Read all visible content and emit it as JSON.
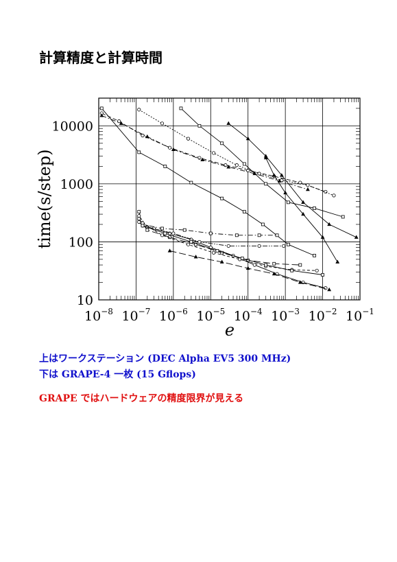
{
  "title": "計算精度と計算時間",
  "captions": {
    "line1": "上はワークステーション (DEC Alpha EV5 300 MHz)",
    "line2": "下は GRAPE-4 一枚 (15 Gflops)",
    "line3": "GRAPE ではハードウェアの精度限界が見える"
  },
  "colors": {
    "caption_blue": "#1010cc",
    "caption_red": "#e01010"
  },
  "chart_data": {
    "type": "line",
    "xlabel": "e",
    "ylabel": "time(s/step)",
    "x_scale": "log",
    "y_scale": "log",
    "xlim": [
      1e-08,
      0.1
    ],
    "ylim": [
      10,
      30000
    ],
    "grid": true,
    "x_tick_exponents": [
      "-8",
      "-7",
      "-6",
      "-5",
      "-4",
      "-3",
      "-2",
      "-1"
    ],
    "y_tick_labels": [
      "10",
      "100",
      "1000",
      "10000"
    ],
    "series": [
      {
        "marker": "square",
        "dash": "solid",
        "x": [
          1.2e-08,
          1.2e-07,
          6e-07,
          3e-06,
          2e-05,
          8e-05,
          0.00025,
          0.0012,
          0.006
        ],
        "y": [
          20000,
          3500,
          2000,
          1050,
          560,
          330,
          200,
          90,
          58
        ]
      },
      {
        "marker": "circle",
        "dash": "dash",
        "x": [
          1.2e-08,
          3.5e-08,
          1.5e-07,
          8e-07,
          5e-06,
          2.5e-05,
          0.0001,
          0.0005,
          0.0025,
          0.012
        ],
        "y": [
          16500,
          12000,
          6800,
          4200,
          2800,
          2100,
          1700,
          1350,
          1050,
          730
        ]
      },
      {
        "marker": "triangle",
        "dash": "dashdot",
        "x": [
          1.2e-08,
          4e-08,
          2e-07,
          1e-06,
          6e-06,
          3e-05,
          0.00015,
          0.0007,
          0.004
        ],
        "y": [
          15000,
          11000,
          6500,
          3900,
          2600,
          1950,
          1500,
          1120,
          800
        ]
      },
      {
        "marker": "circle",
        "dash": "dot",
        "x": [
          1.2e-07,
          5e-07,
          2.5e-06,
          1.2e-05,
          5e-05,
          0.0002,
          0.0008,
          0.004,
          0.02
        ],
        "y": [
          19000,
          11000,
          6000,
          3400,
          2100,
          1500,
          1150,
          950,
          630
        ]
      },
      {
        "marker": "square",
        "dash": "solid",
        "x": [
          1.6e-06,
          5e-06,
          2e-05,
          8e-05,
          0.0003,
          0.0012,
          0.006,
          0.035
        ],
        "y": [
          20000,
          10000,
          5000,
          2200,
          1000,
          480,
          380,
          270
        ]
      },
      {
        "marker": "triangle",
        "dash": "solid",
        "x": [
          3e-05,
          0.0001,
          0.0003,
          0.0008,
          0.003,
          0.015,
          0.08
        ],
        "y": [
          11000,
          6000,
          3000,
          1400,
          480,
          200,
          120
        ]
      },
      {
        "marker": "triangle",
        "dash": "solid",
        "x": [
          0.0003,
          0.0005,
          0.001,
          0.003,
          0.01,
          0.025
        ],
        "y": [
          2800,
          1400,
          700,
          300,
          120,
          45
        ]
      },
      {
        "marker": "circle",
        "dash": "solid",
        "x": [
          1.2e-07,
          1.5e-07,
          3e-07,
          8e-07,
          3e-06,
          1e-05,
          4e-05,
          0.00015,
          0.0006,
          0.003,
          0.012
        ],
        "y": [
          220,
          190,
          170,
          140,
          110,
          80,
          58,
          40,
          28,
          20,
          16
        ]
      },
      {
        "marker": "square",
        "dash": "dashdot",
        "x": [
          1.2e-07,
          1.5e-07,
          5e-07,
          2e-06,
          1e-05,
          5e-05,
          0.0002,
          0.0006
        ],
        "y": [
          330,
          200,
          170,
          160,
          140,
          130,
          130,
          130
        ]
      },
      {
        "marker": "circle",
        "dash": "dashdotdot",
        "x": [
          1.2e-07,
          2e-07,
          1e-06,
          5e-06,
          3e-05,
          0.0002,
          0.0009
        ],
        "y": [
          280,
          180,
          140,
          100,
          85,
          85,
          85
        ]
      },
      {
        "marker": "square",
        "dash": "longdash",
        "x": [
          1.2e-07,
          2e-07,
          8e-07,
          4e-06,
          2e-05,
          0.0001,
          0.0005,
          0.0025
        ],
        "y": [
          250,
          160,
          120,
          90,
          65,
          48,
          42,
          40
        ]
      },
      {
        "marker": "circle",
        "dash": "shortdash",
        "x": [
          1.5e-07,
          5e-07,
          2.5e-06,
          1.2e-05,
          6e-05,
          0.0003,
          0.0015,
          0.007
        ],
        "y": [
          210,
          130,
          90,
          65,
          50,
          38,
          33,
          32
        ]
      },
      {
        "marker": "square",
        "dash": "solid",
        "x": [
          1.5e-07,
          6e-07,
          3e-06,
          1.5e-05,
          7e-05,
          0.0003,
          0.0015,
          0.01
        ],
        "y": [
          190,
          140,
          100,
          70,
          52,
          40,
          32,
          27
        ]
      },
      {
        "marker": "triangle",
        "dash": "longdash",
        "x": [
          8e-07,
          4e-06,
          2e-05,
          0.0001,
          0.0005,
          0.0025,
          0.015
        ],
        "y": [
          70,
          55,
          45,
          35,
          28,
          20,
          15
        ]
      }
    ]
  }
}
